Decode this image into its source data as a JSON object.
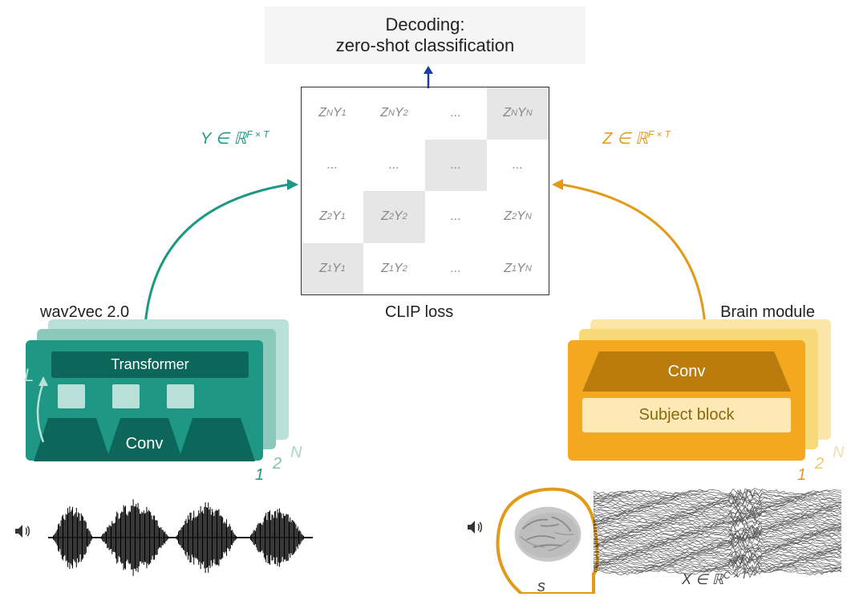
{
  "decoding": {
    "line1": "Decoding:",
    "line2": "zero-shot classification"
  },
  "matrix": {
    "rows": [
      [
        {
          "z": "N",
          "y": "1",
          "diag": false
        },
        {
          "z": "N",
          "y": "2",
          "diag": false
        },
        {
          "dots": true,
          "diag": false
        },
        {
          "z": "N",
          "y": "N",
          "diag": true
        }
      ],
      [
        {
          "dots": true,
          "diag": false
        },
        {
          "dots": true,
          "diag": false
        },
        {
          "dots": true,
          "diag": true
        },
        {
          "dots": true,
          "diag": false
        }
      ],
      [
        {
          "z": "2",
          "y": "1",
          "diag": false
        },
        {
          "z": "2",
          "y": "2",
          "diag": true
        },
        {
          "dots": true,
          "diag": false
        },
        {
          "z": "2",
          "y": "N",
          "diag": false
        }
      ],
      [
        {
          "z": "1",
          "y": "1",
          "diag": true
        },
        {
          "z": "1",
          "y": "2",
          "diag": false
        },
        {
          "dots": true,
          "diag": false
        },
        {
          "z": "1",
          "y": "N",
          "diag": false
        }
      ]
    ]
  },
  "clip_label": "CLIP loss",
  "y_expr": {
    "var": "Y",
    "set": "ℝ",
    "dim": "F × T"
  },
  "z_expr": {
    "var": "Z",
    "set": "ℝ",
    "dim": "F × T"
  },
  "x_expr": {
    "var": "X",
    "set": "ℝ",
    "dim": "C × T"
  },
  "wav2vec": {
    "title": "wav2vec 2.0",
    "transformer": "Transformer",
    "conv": "Conv",
    "L": "L",
    "stack_numbers": [
      "1",
      "2",
      "N"
    ],
    "colors": {
      "main": "#1e9884",
      "mid": "#8cc9bd",
      "light": "#b9e0d9",
      "dark": "#0d665a"
    }
  },
  "brain": {
    "title": "Brain module",
    "conv": "Conv",
    "subject": "Subject block",
    "stack_numbers": [
      "1",
      "2",
      "N"
    ],
    "colors": {
      "main": "#f3a81f",
      "mid": "#f8d97a",
      "light": "#fbe6a8",
      "dark": "#b97c0d",
      "pale": "#fde9b5"
    }
  },
  "bottom": {
    "s": "s"
  },
  "arrow_colors": {
    "up": "#1b3ca6",
    "left": "#1e9884",
    "right": "#e39a17"
  },
  "background": "#ffffff"
}
